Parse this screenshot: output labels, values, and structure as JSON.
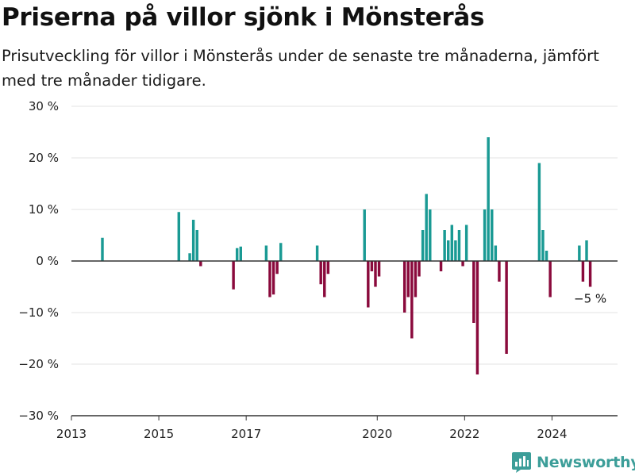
{
  "header": {
    "title": "Priserna på villor sjönk i Mönsterås",
    "subtitle": "Prisutveckling för villor i Mönsterås under de senaste tre månaderna, jämfört med tre månader tidigare."
  },
  "brand": {
    "name": "Newsworthy",
    "icon": "newsworthy-logo-icon",
    "color": "#3c9e99"
  },
  "colors": {
    "positive": "#1a9a94",
    "negative": "#8a0a3c",
    "grid": "#e3e3e3",
    "axis": "#333333"
  },
  "chart_data": {
    "type": "bar",
    "title": "Priserna på villor sjönk i Mönsterås",
    "ylabel": "",
    "xlabel": "",
    "ylim": [
      -30,
      30
    ],
    "xlim": [
      "2013-01",
      "2025-07"
    ],
    "y_ticks": [
      {
        "value": 30,
        "label": "30 %"
      },
      {
        "value": 20,
        "label": "20 %"
      },
      {
        "value": 10,
        "label": "10 %"
      },
      {
        "value": 0,
        "label": "0 %"
      },
      {
        "value": -10,
        "label": "−10 %"
      },
      {
        "value": -20,
        "label": "−20 %"
      },
      {
        "value": -30,
        "label": "−30 %"
      }
    ],
    "x_ticks": [
      "2013",
      "2015",
      "2017",
      "2020",
      "2022",
      "2024"
    ],
    "grid": true,
    "annotation": {
      "date": "2024-11",
      "value": -5,
      "label": "−5 %"
    },
    "series": [
      {
        "x": [
          "2013-09",
          "2015-06",
          "2015-09",
          "2015-10",
          "2015-11",
          "2015-12",
          "2016-09",
          "2016-10",
          "2016-11",
          "2017-06",
          "2017-07",
          "2017-08",
          "2017-09",
          "2017-10",
          "2018-08",
          "2018-09",
          "2018-10",
          "2018-11",
          "2019-09",
          "2019-10",
          "2019-11",
          "2019-12",
          "2020-01",
          "2020-08",
          "2020-09",
          "2020-10",
          "2020-11",
          "2020-12",
          "2021-01",
          "2021-02",
          "2021-03",
          "2021-06",
          "2021-07",
          "2021-08",
          "2021-09",
          "2021-10",
          "2021-11",
          "2021-12",
          "2022-01",
          "2022-03",
          "2022-04",
          "2022-06",
          "2022-07",
          "2022-08",
          "2022-09",
          "2022-10",
          "2022-12",
          "2023-09",
          "2023-10",
          "2023-11",
          "2023-12",
          "2024-08",
          "2024-09",
          "2024-10",
          "2024-11"
        ],
        "values": [
          4.5,
          9.5,
          1.5,
          8,
          6,
          -1,
          -5.5,
          2.5,
          2.8,
          3,
          -7,
          -6.5,
          -2.5,
          3.5,
          3,
          -4.5,
          -7,
          -2.5,
          10,
          -9,
          -2,
          -5,
          -3,
          -10,
          -7,
          -15,
          -7,
          -3,
          6,
          13,
          10,
          -2,
          6,
          4,
          7,
          4,
          6,
          -1,
          7,
          -12,
          -22,
          10,
          24,
          10,
          3,
          -4,
          -18,
          19,
          6,
          2,
          -7,
          3,
          -4,
          4,
          -5
        ]
      }
    ]
  }
}
